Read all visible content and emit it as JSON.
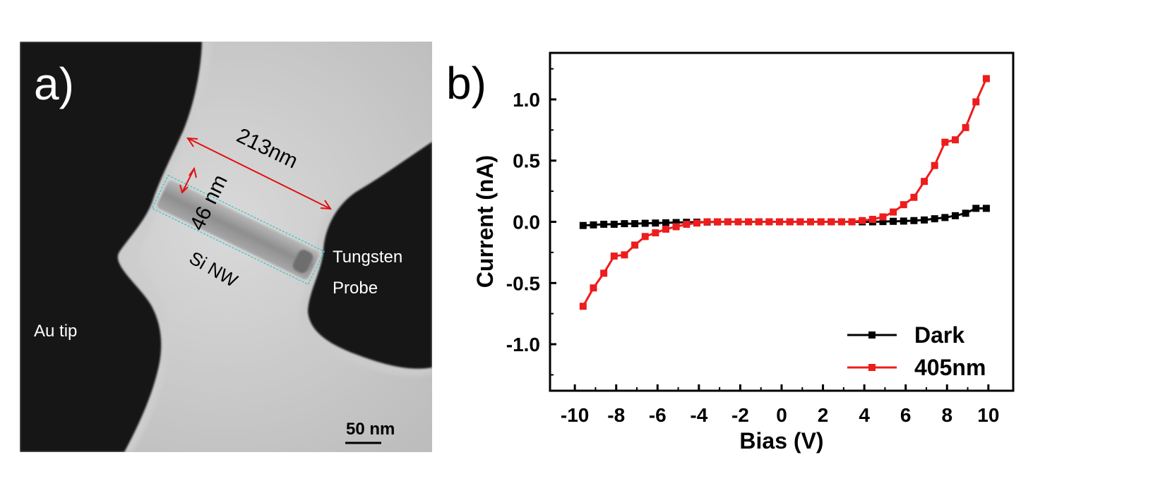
{
  "panel_a": {
    "label": "a)",
    "dim_length": "213nm",
    "dim_width": "46 nm",
    "nanowire_label": "Si NW",
    "probe_label_line1": "Tungsten",
    "probe_label_line2": "Probe",
    "tip_label": "Au tip",
    "scale_bar": "50 nm",
    "colors": {
      "dimension": "#e01010",
      "outline": "#36c6c8"
    }
  },
  "panel_b": {
    "label": "b)"
  },
  "chart_data": {
    "type": "line",
    "title": "",
    "xlabel": "Bias (V)",
    "ylabel": "Current (nA)",
    "xlim": [
      -11.2,
      11.2
    ],
    "ylim": [
      -1.38,
      1.38
    ],
    "xticks": [
      -10,
      -8,
      -6,
      -4,
      -2,
      0,
      2,
      4,
      6,
      8,
      10
    ],
    "xtick_labels": [
      "-10",
      "-8",
      "-6",
      "-4",
      "-2",
      "0",
      "2",
      "4",
      "6",
      "8",
      "10"
    ],
    "yticks": [
      1.0,
      0.5,
      0.0,
      -0.5,
      -1.0
    ],
    "ytick_labels": [
      "1.0",
      "0.5",
      "0.0",
      "-0.5",
      "-1.0"
    ],
    "grid": false,
    "legend_position": "bottom-right",
    "x": [
      -9.6,
      -9.1,
      -8.6,
      -8.1,
      -7.6,
      -7.1,
      -6.6,
      -6.1,
      -5.6,
      -5.1,
      -4.6,
      -4.1,
      -3.6,
      -3.1,
      -2.6,
      -2.1,
      -1.6,
      -1.1,
      -0.6,
      -0.1,
      0.4,
      0.9,
      1.4,
      1.9,
      2.4,
      2.9,
      3.4,
      3.9,
      4.4,
      4.9,
      5.4,
      5.9,
      6.4,
      6.9,
      7.4,
      7.9,
      8.4,
      8.9,
      9.4,
      9.9
    ],
    "series": [
      {
        "name": "Dark",
        "color": "#000000",
        "values": [
          -0.03,
          -0.025,
          -0.02,
          -0.02,
          -0.015,
          -0.015,
          -0.012,
          -0.01,
          -0.008,
          -0.006,
          -0.004,
          -0.003,
          -0.002,
          -0.001,
          0,
          0,
          0,
          0,
          0,
          0,
          0,
          0,
          0,
          0,
          0,
          0,
          0,
          0,
          0,
          0.002,
          0.004,
          0.006,
          0.01,
          0.015,
          0.025,
          0.035,
          0.05,
          0.07,
          0.11,
          0.11
        ]
      },
      {
        "name": "405nm",
        "color": "#ee1c1c",
        "values": [
          -0.69,
          -0.54,
          -0.42,
          -0.28,
          -0.27,
          -0.19,
          -0.12,
          -0.09,
          -0.06,
          -0.04,
          -0.02,
          -0.01,
          0,
          0,
          0,
          0,
          0,
          0,
          0,
          0,
          0,
          0,
          0,
          0,
          0,
          0,
          0,
          0.01,
          0.02,
          0.04,
          0.08,
          0.14,
          0.2,
          0.33,
          0.46,
          0.65,
          0.67,
          0.77,
          0.98,
          1.17
        ]
      }
    ]
  }
}
